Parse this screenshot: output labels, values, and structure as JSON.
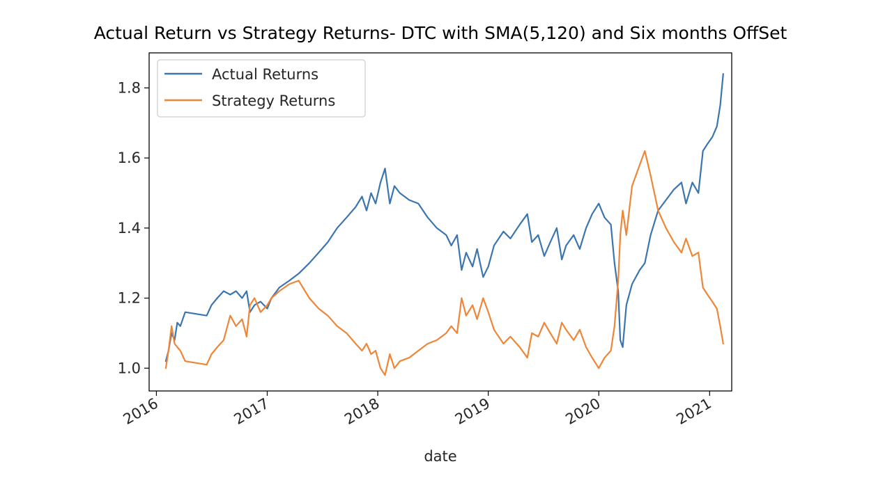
{
  "chart_data": {
    "type": "line",
    "title": "Actual Return vs Strategy Returns- DTC with SMA(5,120) and Six months OffSet",
    "xlabel": "date",
    "ylabel": "",
    "xlim": [
      "2015-12-08",
      "2021-03-15"
    ],
    "ylim": [
      0.935,
      1.9
    ],
    "x_ticks": [
      "2016",
      "2017",
      "2018",
      "2019",
      "2020",
      "2021"
    ],
    "x_tick_dates": [
      "2016-01-01",
      "2017-01-01",
      "2018-01-01",
      "2019-01-01",
      "2020-01-01",
      "2021-01-01"
    ],
    "y_ticks": [
      1.0,
      1.2,
      1.4,
      1.6,
      1.8
    ],
    "y_tick_labels": [
      "1.0",
      "1.2",
      "1.4",
      "1.6",
      "1.8"
    ],
    "grid": false,
    "legend_position": "top-left",
    "series": [
      {
        "name": "Actual Returns",
        "color": "#3b75af",
        "points": [
          [
            "2016-02-01",
            1.02
          ],
          [
            "2016-02-10",
            1.05
          ],
          [
            "2016-02-20",
            1.1
          ],
          [
            "2016-03-01",
            1.08
          ],
          [
            "2016-03-10",
            1.13
          ],
          [
            "2016-03-20",
            1.12
          ],
          [
            "2016-04-05",
            1.16
          ],
          [
            "2016-06-15",
            1.15
          ],
          [
            "2016-07-01",
            1.18
          ],
          [
            "2016-07-20",
            1.2
          ],
          [
            "2016-08-10",
            1.22
          ],
          [
            "2016-09-01",
            1.21
          ],
          [
            "2016-09-20",
            1.22
          ],
          [
            "2016-10-10",
            1.2
          ],
          [
            "2016-10-25",
            1.22
          ],
          [
            "2016-11-05",
            1.16
          ],
          [
            "2016-11-20",
            1.18
          ],
          [
            "2016-12-10",
            1.19
          ],
          [
            "2017-01-01",
            1.17
          ],
          [
            "2017-01-15",
            1.2
          ],
          [
            "2017-02-10",
            1.23
          ],
          [
            "2017-03-15",
            1.25
          ],
          [
            "2017-04-15",
            1.27
          ],
          [
            "2017-05-20",
            1.3
          ],
          [
            "2017-06-20",
            1.33
          ],
          [
            "2017-07-20",
            1.36
          ],
          [
            "2017-08-20",
            1.4
          ],
          [
            "2017-09-20",
            1.43
          ],
          [
            "2017-10-20",
            1.46
          ],
          [
            "2017-11-10",
            1.49
          ],
          [
            "2017-11-25",
            1.45
          ],
          [
            "2017-12-10",
            1.5
          ],
          [
            "2017-12-25",
            1.47
          ],
          [
            "2018-01-10",
            1.53
          ],
          [
            "2018-01-25",
            1.57
          ],
          [
            "2018-02-10",
            1.47
          ],
          [
            "2018-02-25",
            1.52
          ],
          [
            "2018-03-15",
            1.5
          ],
          [
            "2018-04-15",
            1.48
          ],
          [
            "2018-05-15",
            1.47
          ],
          [
            "2018-06-15",
            1.43
          ],
          [
            "2018-07-15",
            1.4
          ],
          [
            "2018-08-15",
            1.38
          ],
          [
            "2018-09-01",
            1.35
          ],
          [
            "2018-09-20",
            1.38
          ],
          [
            "2018-10-05",
            1.28
          ],
          [
            "2018-10-20",
            1.33
          ],
          [
            "2018-11-10",
            1.29
          ],
          [
            "2018-11-25",
            1.34
          ],
          [
            "2018-12-15",
            1.26
          ],
          [
            "2019-01-01",
            1.29
          ],
          [
            "2019-01-20",
            1.35
          ],
          [
            "2019-02-20",
            1.39
          ],
          [
            "2019-03-15",
            1.37
          ],
          [
            "2019-04-15",
            1.41
          ],
          [
            "2019-05-10",
            1.44
          ],
          [
            "2019-05-25",
            1.36
          ],
          [
            "2019-06-15",
            1.38
          ],
          [
            "2019-07-05",
            1.32
          ],
          [
            "2019-07-25",
            1.36
          ],
          [
            "2019-08-15",
            1.4
          ],
          [
            "2019-09-01",
            1.31
          ],
          [
            "2019-09-15",
            1.35
          ],
          [
            "2019-10-10",
            1.38
          ],
          [
            "2019-10-30",
            1.34
          ],
          [
            "2019-11-20",
            1.4
          ],
          [
            "2019-12-10",
            1.44
          ],
          [
            "2020-01-01",
            1.47
          ],
          [
            "2020-01-20",
            1.43
          ],
          [
            "2020-02-10",
            1.41
          ],
          [
            "2020-02-22",
            1.3
          ],
          [
            "2020-03-05",
            1.22
          ],
          [
            "2020-03-12",
            1.08
          ],
          [
            "2020-03-20",
            1.06
          ],
          [
            "2020-04-01",
            1.18
          ],
          [
            "2020-04-20",
            1.24
          ],
          [
            "2020-05-15",
            1.28
          ],
          [
            "2020-06-01",
            1.3
          ],
          [
            "2020-06-20",
            1.38
          ],
          [
            "2020-07-15",
            1.45
          ],
          [
            "2020-08-10",
            1.48
          ],
          [
            "2020-09-05",
            1.51
          ],
          [
            "2020-09-30",
            1.53
          ],
          [
            "2020-10-15",
            1.47
          ],
          [
            "2020-11-05",
            1.53
          ],
          [
            "2020-11-25",
            1.5
          ],
          [
            "2020-12-10",
            1.62
          ],
          [
            "2020-12-25",
            1.64
          ],
          [
            "2021-01-10",
            1.66
          ],
          [
            "2021-01-25",
            1.69
          ],
          [
            "2021-02-05",
            1.75
          ],
          [
            "2021-02-15",
            1.84
          ]
        ]
      },
      {
        "name": "Strategy Returns",
        "color": "#ef8536",
        "points": [
          [
            "2016-02-01",
            1.0
          ],
          [
            "2016-02-10",
            1.05
          ],
          [
            "2016-02-20",
            1.12
          ],
          [
            "2016-03-01",
            1.07
          ],
          [
            "2016-03-10",
            1.06
          ],
          [
            "2016-03-20",
            1.05
          ],
          [
            "2016-04-05",
            1.02
          ],
          [
            "2016-06-15",
            1.01
          ],
          [
            "2016-07-01",
            1.04
          ],
          [
            "2016-07-20",
            1.06
          ],
          [
            "2016-08-10",
            1.08
          ],
          [
            "2016-09-01",
            1.15
          ],
          [
            "2016-09-20",
            1.12
          ],
          [
            "2016-10-10",
            1.14
          ],
          [
            "2016-10-25",
            1.09
          ],
          [
            "2016-11-05",
            1.18
          ],
          [
            "2016-11-20",
            1.2
          ],
          [
            "2016-12-10",
            1.16
          ],
          [
            "2017-01-01",
            1.18
          ],
          [
            "2017-01-15",
            1.2
          ],
          [
            "2017-02-10",
            1.22
          ],
          [
            "2017-03-15",
            1.24
          ],
          [
            "2017-04-15",
            1.25
          ],
          [
            "2017-05-20",
            1.2
          ],
          [
            "2017-06-20",
            1.17
          ],
          [
            "2017-07-20",
            1.15
          ],
          [
            "2017-08-20",
            1.12
          ],
          [
            "2017-09-20",
            1.1
          ],
          [
            "2017-10-20",
            1.07
          ],
          [
            "2017-11-10",
            1.05
          ],
          [
            "2017-11-25",
            1.07
          ],
          [
            "2017-12-10",
            1.04
          ],
          [
            "2017-12-25",
            1.05
          ],
          [
            "2018-01-10",
            1.0
          ],
          [
            "2018-01-25",
            0.98
          ],
          [
            "2018-02-10",
            1.04
          ],
          [
            "2018-02-25",
            1.0
          ],
          [
            "2018-03-15",
            1.02
          ],
          [
            "2018-04-15",
            1.03
          ],
          [
            "2018-05-15",
            1.05
          ],
          [
            "2018-06-15",
            1.07
          ],
          [
            "2018-07-15",
            1.08
          ],
          [
            "2018-08-15",
            1.1
          ],
          [
            "2018-09-01",
            1.12
          ],
          [
            "2018-09-20",
            1.1
          ],
          [
            "2018-10-05",
            1.2
          ],
          [
            "2018-10-20",
            1.15
          ],
          [
            "2018-11-10",
            1.18
          ],
          [
            "2018-11-25",
            1.14
          ],
          [
            "2018-12-15",
            1.2
          ],
          [
            "2019-01-01",
            1.16
          ],
          [
            "2019-01-20",
            1.11
          ],
          [
            "2019-02-20",
            1.07
          ],
          [
            "2019-03-15",
            1.09
          ],
          [
            "2019-04-15",
            1.06
          ],
          [
            "2019-05-10",
            1.03
          ],
          [
            "2019-05-25",
            1.1
          ],
          [
            "2019-06-15",
            1.09
          ],
          [
            "2019-07-05",
            1.13
          ],
          [
            "2019-07-25",
            1.1
          ],
          [
            "2019-08-15",
            1.07
          ],
          [
            "2019-09-01",
            1.13
          ],
          [
            "2019-09-15",
            1.11
          ],
          [
            "2019-10-10",
            1.08
          ],
          [
            "2019-10-30",
            1.11
          ],
          [
            "2019-11-20",
            1.06
          ],
          [
            "2019-12-10",
            1.03
          ],
          [
            "2020-01-01",
            1.0
          ],
          [
            "2020-01-20",
            1.03
          ],
          [
            "2020-02-10",
            1.05
          ],
          [
            "2020-02-22",
            1.12
          ],
          [
            "2020-03-05",
            1.25
          ],
          [
            "2020-03-12",
            1.38
          ],
          [
            "2020-03-20",
            1.45
          ],
          [
            "2020-04-01",
            1.38
          ],
          [
            "2020-04-20",
            1.52
          ],
          [
            "2020-05-15",
            1.58
          ],
          [
            "2020-06-01",
            1.62
          ],
          [
            "2020-06-20",
            1.55
          ],
          [
            "2020-07-15",
            1.45
          ],
          [
            "2020-08-10",
            1.4
          ],
          [
            "2020-09-05",
            1.36
          ],
          [
            "2020-09-30",
            1.33
          ],
          [
            "2020-10-15",
            1.37
          ],
          [
            "2020-11-05",
            1.32
          ],
          [
            "2020-11-25",
            1.33
          ],
          [
            "2020-12-10",
            1.23
          ],
          [
            "2020-12-25",
            1.21
          ],
          [
            "2021-01-10",
            1.19
          ],
          [
            "2021-01-25",
            1.17
          ],
          [
            "2021-02-05",
            1.12
          ],
          [
            "2021-02-15",
            1.07
          ]
        ]
      }
    ]
  }
}
